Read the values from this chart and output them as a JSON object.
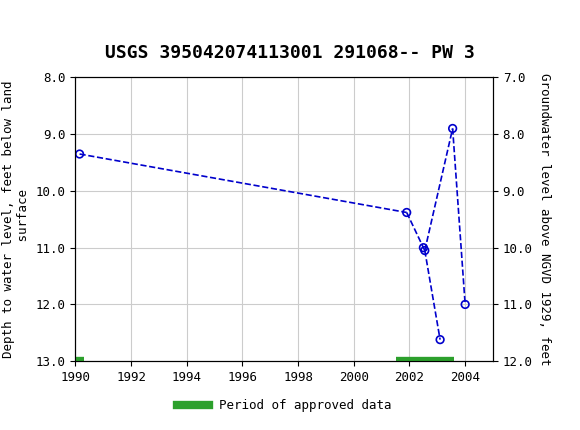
{
  "title": "USGS 395042074113001 291068-- PW 3",
  "ylabel_left": "Depth to water level, feet below land\n surface",
  "ylabel_right": "Groundwater level above NGVD 1929, feet",
  "xlim": [
    1990,
    2005
  ],
  "ylim_left": [
    8.0,
    13.0
  ],
  "ylim_right": [
    7.0,
    12.0
  ],
  "xticks": [
    1990,
    1992,
    1994,
    1996,
    1998,
    2000,
    2002,
    2004
  ],
  "yticks_left": [
    8.0,
    9.0,
    10.0,
    11.0,
    12.0,
    13.0
  ],
  "yticks_right": [
    7.0,
    8.0,
    9.0,
    10.0,
    11.0,
    12.0
  ],
  "scatter_x": [
    1990.15,
    2001.9,
    2002.5,
    2002.55,
    2003.1,
    2003.55,
    2004.0
  ],
  "scatter_y": [
    9.35,
    10.38,
    11.0,
    11.05,
    12.62,
    8.9,
    12.0
  ],
  "line_segments": [
    [
      0,
      1
    ],
    [
      1,
      2
    ],
    [
      2,
      3
    ],
    [
      3,
      4
    ],
    [
      3,
      5
    ],
    [
      5,
      6
    ]
  ],
  "green_bars": [
    {
      "xstart": 1990.0,
      "xend": 1990.3,
      "y": 13.0
    },
    {
      "xstart": 2001.5,
      "xend": 2003.6,
      "y": 13.0
    }
  ],
  "header_color": "#1a6b3c",
  "line_color": "#0000cc",
  "marker_color": "#0000cc",
  "bar_color": "#2ca02c",
  "background_color": "#ffffff",
  "grid_color": "#cccccc",
  "legend_label": "Period of approved data",
  "title_fontsize": 13,
  "axis_fontsize": 9,
  "tick_fontsize": 9
}
